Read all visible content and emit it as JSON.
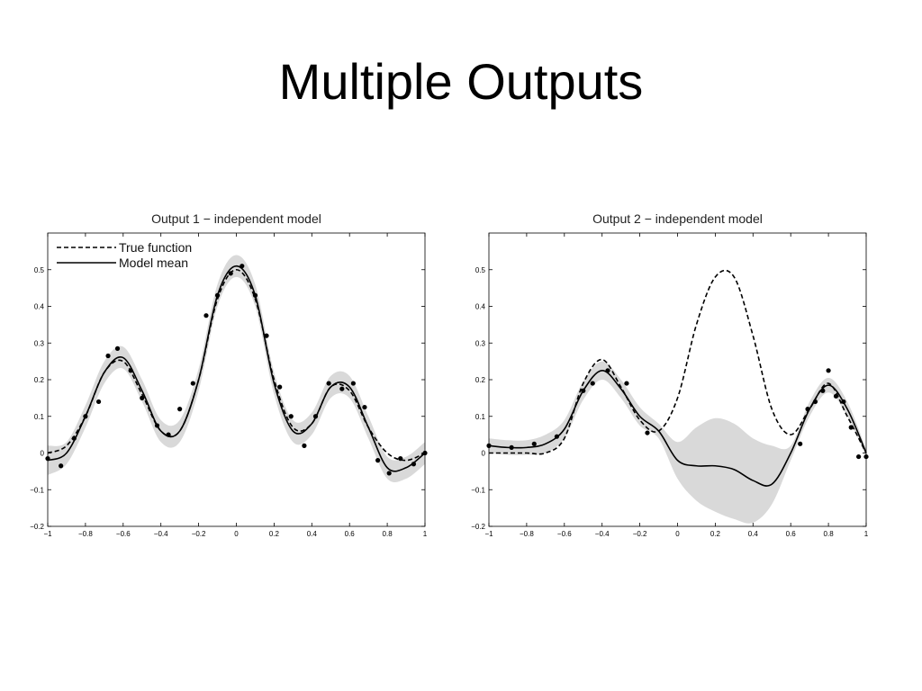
{
  "slide": {
    "title": "Multiple Outputs"
  },
  "colors": {
    "band": "#d9d9d9",
    "line": "#000000",
    "background": "#ffffff"
  },
  "chart_data": [
    {
      "type": "line",
      "title": "Output 1 − independent model",
      "xlabel": "",
      "ylabel": "",
      "xlim": [
        -1,
        1
      ],
      "ylim": [
        -0.2,
        0.6
      ],
      "xticks": [
        -1,
        -0.8,
        -0.6,
        -0.4,
        -0.2,
        0,
        0.2,
        0.4,
        0.6,
        0.8,
        1
      ],
      "xtick_labels": [
        "−1",
        "−0.8",
        "−0.6",
        "−0.4",
        "−0.2",
        "0",
        "0.2",
        "0.4",
        "0.6",
        "0.8",
        "1"
      ],
      "yticks": [
        -0.2,
        -0.1,
        0,
        0.1,
        0.2,
        0.3,
        0.4,
        0.5
      ],
      "ytick_labels": [
        "−0.2",
        "−0.1",
        "0",
        "0.1",
        "0.2",
        "0.3",
        "0.4",
        "0.5"
      ],
      "legend": {
        "placement": "top-left",
        "entries": [
          "True function",
          "Model mean"
        ]
      },
      "series": [
        {
          "name": "True function",
          "style": "dashed",
          "x": [
            -1,
            -0.9,
            -0.8,
            -0.7,
            -0.6,
            -0.5,
            -0.4,
            -0.3,
            -0.2,
            -0.1,
            0,
            0.1,
            0.2,
            0.3,
            0.4,
            0.5,
            0.6,
            0.7,
            0.8,
            0.9,
            1
          ],
          "y": [
            0.0,
            0.02,
            0.1,
            0.22,
            0.25,
            0.16,
            0.06,
            0.06,
            0.2,
            0.42,
            0.5,
            0.42,
            0.2,
            0.07,
            0.08,
            0.18,
            0.17,
            0.07,
            0.0,
            -0.02,
            0.0
          ]
        },
        {
          "name": "Model mean",
          "style": "solid",
          "x": [
            -1,
            -0.9,
            -0.8,
            -0.7,
            -0.6,
            -0.5,
            -0.4,
            -0.3,
            -0.2,
            -0.1,
            0,
            0.1,
            0.2,
            0.3,
            0.4,
            0.5,
            0.6,
            0.7,
            0.8,
            0.9,
            1
          ],
          "y": [
            -0.02,
            0.0,
            0.1,
            0.22,
            0.26,
            0.17,
            0.06,
            0.06,
            0.2,
            0.43,
            0.51,
            0.43,
            0.19,
            0.06,
            0.08,
            0.18,
            0.18,
            0.07,
            -0.04,
            -0.04,
            0.0
          ]
        }
      ],
      "band": {
        "x": [
          -1,
          -0.9,
          -0.8,
          -0.7,
          -0.6,
          -0.5,
          -0.4,
          -0.3,
          -0.2,
          -0.1,
          0,
          0.1,
          0.2,
          0.3,
          0.4,
          0.5,
          0.6,
          0.7,
          0.8,
          0.9,
          1
        ],
        "lower": [
          -0.06,
          -0.03,
          0.07,
          0.19,
          0.23,
          0.14,
          0.03,
          0.03,
          0.17,
          0.4,
          0.48,
          0.4,
          0.16,
          0.03,
          0.05,
          0.15,
          0.15,
          0.04,
          -0.07,
          -0.07,
          -0.03
        ],
        "upper": [
          0.02,
          0.03,
          0.13,
          0.25,
          0.29,
          0.2,
          0.09,
          0.09,
          0.23,
          0.46,
          0.54,
          0.46,
          0.22,
          0.09,
          0.11,
          0.21,
          0.21,
          0.1,
          -0.01,
          -0.01,
          0.03
        ]
      },
      "points": {
        "x": [
          -1,
          -0.93,
          -0.86,
          -0.8,
          -0.73,
          -0.68,
          -0.63,
          -0.56,
          -0.5,
          -0.42,
          -0.36,
          -0.3,
          -0.23,
          -0.16,
          -0.1,
          -0.03,
          0.03,
          0.1,
          0.16,
          0.23,
          0.29,
          0.36,
          0.42,
          0.49,
          0.56,
          0.62,
          0.68,
          0.75,
          0.81,
          0.87,
          0.94,
          1
        ],
        "y": [
          -0.015,
          -0.035,
          0.04,
          0.1,
          0.14,
          0.265,
          0.285,
          0.225,
          0.15,
          0.075,
          0.05,
          0.12,
          0.19,
          0.375,
          0.43,
          0.49,
          0.51,
          0.43,
          0.32,
          0.18,
          0.1,
          0.02,
          0.1,
          0.19,
          0.175,
          0.19,
          0.125,
          -0.02,
          -0.055,
          -0.015,
          -0.03,
          0.0
        ]
      }
    },
    {
      "type": "line",
      "title": "Output 2 − independent model",
      "xlabel": "",
      "ylabel": "",
      "xlim": [
        -1,
        1
      ],
      "ylim": [
        -0.2,
        0.6
      ],
      "xticks": [
        -1,
        -0.8,
        -0.6,
        -0.4,
        -0.2,
        0,
        0.2,
        0.4,
        0.6,
        0.8,
        1
      ],
      "xtick_labels": [
        "−1",
        "−0.8",
        "−0.6",
        "−0.4",
        "−0.2",
        "0",
        "0.2",
        "0.4",
        "0.6",
        "0.8",
        "1"
      ],
      "yticks": [
        -0.2,
        -0.1,
        0,
        0.1,
        0.2,
        0.3,
        0.4,
        0.5
      ],
      "ytick_labels": [
        "−0.2",
        "−0.1",
        "0",
        "0.1",
        "0.2",
        "0.3",
        "0.4",
        "0.5"
      ],
      "series": [
        {
          "name": "True function",
          "style": "dashed",
          "x": [
            -1,
            -0.9,
            -0.8,
            -0.7,
            -0.6,
            -0.5,
            -0.4,
            -0.3,
            -0.2,
            -0.1,
            0,
            0.1,
            0.2,
            0.3,
            0.4,
            0.5,
            0.6,
            0.7,
            0.8,
            0.9,
            1
          ],
          "y": [
            0.0,
            0.0,
            0.0,
            0.0,
            0.04,
            0.19,
            0.255,
            0.18,
            0.09,
            0.06,
            0.15,
            0.35,
            0.48,
            0.48,
            0.32,
            0.12,
            0.05,
            0.12,
            0.19,
            0.1,
            0.0
          ]
        },
        {
          "name": "Model mean",
          "style": "solid",
          "x": [
            -1,
            -0.9,
            -0.8,
            -0.7,
            -0.6,
            -0.5,
            -0.4,
            -0.3,
            -0.2,
            -0.1,
            0,
            0.1,
            0.2,
            0.3,
            0.4,
            0.5,
            0.6,
            0.7,
            0.8,
            0.9,
            1
          ],
          "y": [
            0.02,
            0.015,
            0.015,
            0.025,
            0.065,
            0.17,
            0.225,
            0.175,
            0.1,
            0.06,
            -0.02,
            -0.035,
            -0.035,
            -0.045,
            -0.075,
            -0.085,
            0.0,
            0.12,
            0.185,
            0.12,
            0.0
          ]
        }
      ],
      "band": {
        "x": [
          -1,
          -0.9,
          -0.8,
          -0.7,
          -0.6,
          -0.5,
          -0.4,
          -0.3,
          -0.2,
          -0.1,
          0,
          0.1,
          0.2,
          0.3,
          0.4,
          0.5,
          0.6,
          0.7,
          0.8,
          0.9,
          1
        ],
        "lower": [
          0.0,
          -0.005,
          -0.005,
          0.0,
          0.04,
          0.145,
          0.2,
          0.15,
          0.075,
          0.04,
          -0.07,
          -0.13,
          -0.16,
          -0.18,
          -0.19,
          -0.14,
          -0.02,
          0.1,
          0.165,
          0.1,
          -0.01
        ],
        "upper": [
          0.04,
          0.035,
          0.035,
          0.05,
          0.09,
          0.195,
          0.25,
          0.2,
          0.125,
          0.08,
          0.03,
          0.07,
          0.095,
          0.08,
          0.04,
          0.02,
          0.02,
          0.14,
          0.205,
          0.14,
          0.01
        ]
      },
      "points": {
        "x": [
          -1,
          -0.88,
          -0.76,
          -0.64,
          -0.5,
          -0.45,
          -0.37,
          -0.27,
          -0.16,
          0.65,
          0.69,
          0.73,
          0.77,
          0.8,
          0.84,
          0.88,
          0.92,
          0.96,
          1
        ],
        "y": [
          0.02,
          0.015,
          0.025,
          0.045,
          0.17,
          0.19,
          0.225,
          0.19,
          0.055,
          0.025,
          0.12,
          0.14,
          0.17,
          0.225,
          0.155,
          0.14,
          0.07,
          -0.01,
          -0.01
        ]
      }
    }
  ]
}
